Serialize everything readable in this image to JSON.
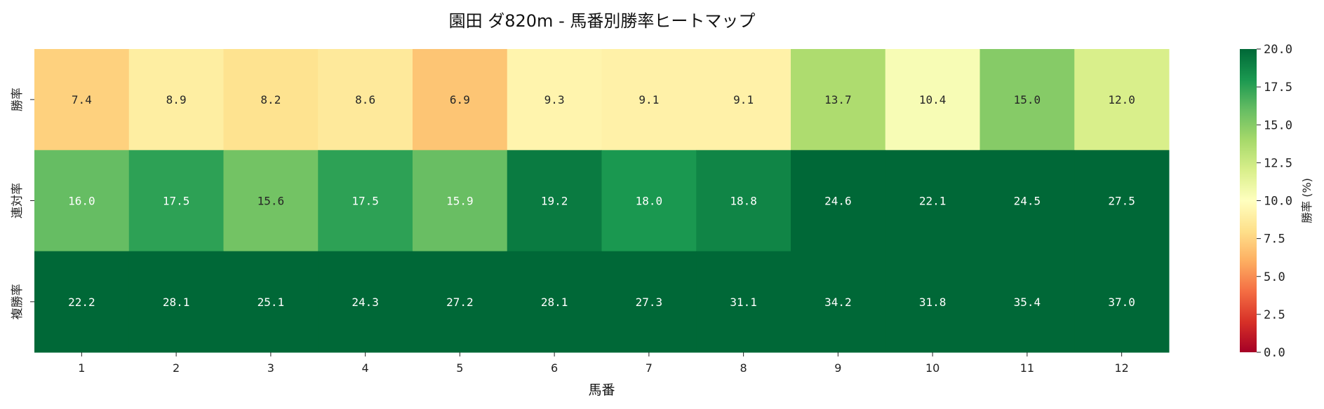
{
  "chart_data": {
    "type": "heatmap",
    "title": "園田 ダ820m - 馬番別勝率ヒートマップ",
    "xlabel": "馬番",
    "ylabel": "",
    "x_categories": [
      "1",
      "2",
      "3",
      "4",
      "5",
      "6",
      "7",
      "8",
      "9",
      "10",
      "11",
      "12"
    ],
    "y_categories": [
      "勝率",
      "連対率",
      "複勝率"
    ],
    "values": [
      [
        7.4,
        8.9,
        8.2,
        8.6,
        6.9,
        9.3,
        9.1,
        9.1,
        13.7,
        10.4,
        15.0,
        12.0
      ],
      [
        16.0,
        17.5,
        15.6,
        17.5,
        15.9,
        19.2,
        18.0,
        18.8,
        24.6,
        22.1,
        24.5,
        27.5
      ],
      [
        22.2,
        28.1,
        25.1,
        24.3,
        27.2,
        28.1,
        27.3,
        31.1,
        34.2,
        31.8,
        35.4,
        37.0
      ]
    ],
    "colormap": "RdYlGn",
    "colormap_stops": [
      "#a50026",
      "#d73027",
      "#f46d43",
      "#fdae61",
      "#fee08b",
      "#ffffbf",
      "#d9ef8b",
      "#a6d96a",
      "#66bd63",
      "#1a9850",
      "#006837"
    ],
    "vmin": 0,
    "vmax": 20,
    "colorbar": {
      "label": "勝率 (%)",
      "ticks": [
        "0.0",
        "2.5",
        "5.0",
        "7.5",
        "10.0",
        "12.5",
        "15.0",
        "17.5",
        "20.0"
      ]
    },
    "grid": false
  }
}
